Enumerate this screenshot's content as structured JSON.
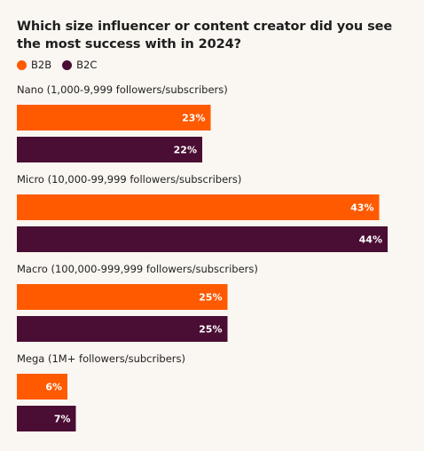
{
  "title": "Which size influencer or content creator did you see the most success with in 2024?",
  "legend": [
    {
      "label": "B2B",
      "color": "#ff5a00"
    },
    {
      "label": "B2C",
      "color": "#4a0d33"
    }
  ],
  "chart_data": {
    "type": "bar",
    "orientation": "horizontal",
    "title": "Which size influencer or content creator did you see the most success with in 2024?",
    "categories": [
      "Nano (1,000-9,999 followers/subscribers)",
      "Micro (10,000-99,999 followers/subscribers)",
      "Macro (100,000-999,999 followers/subscribers)",
      "Mega (1M+ followers/subcribers)"
    ],
    "series": [
      {
        "name": "B2B",
        "color": "#ff5a00",
        "values": [
          23,
          43,
          25,
          6
        ]
      },
      {
        "name": "B2C",
        "color": "#4a0d33",
        "values": [
          22,
          44,
          25,
          7
        ]
      }
    ],
    "value_suffix": "%",
    "legend_position": "top-left",
    "grid": false
  }
}
